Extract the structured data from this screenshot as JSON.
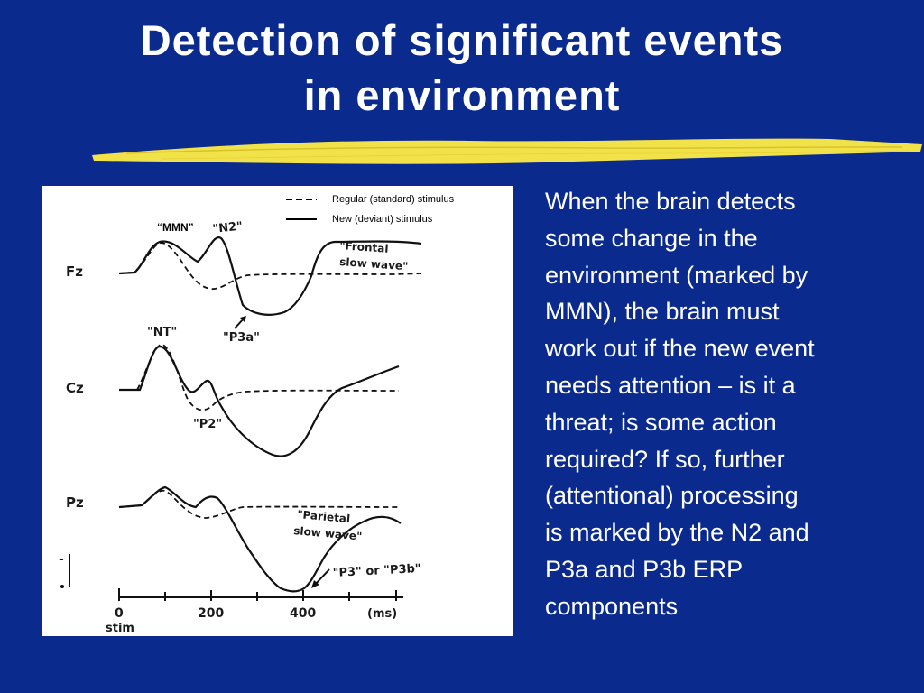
{
  "slide": {
    "title_lines": [
      "Detection of significant events",
      "in environment"
    ],
    "underline_color": "#f2e24a",
    "background_color": "#0b2a8e"
  },
  "figure": {
    "legend": {
      "standard": "Regular (standard) stimulus",
      "deviant": "New (deviant) stimulus"
    },
    "labels": {
      "mmn": "“MMN”",
      "n2": "\"N2\"",
      "frontal_1": "\"Frontal",
      "frontal_2": "slow wave\"",
      "p3a": "\"P3a\"",
      "nt": "\"NT\"",
      "p2": "\"P2\"",
      "parietal_1": "\"Parietal",
      "parietal_2": "slow wave\"",
      "p3_or_p3b": "\"P3\" or \"P3b\""
    },
    "channels": [
      "Fz",
      "Cz",
      "Pz"
    ],
    "axis": {
      "ticks": [
        "0",
        "200",
        "400"
      ],
      "unit": "(ms)",
      "stim": "stim"
    },
    "scale_marks": [
      "-",
      "+"
    ]
  },
  "body": {
    "lines": [
      "When the brain detects",
      "some change in the",
      "environment (marked by",
      "MMN), the brain must",
      "work out if the new event",
      "needs attention – is it a",
      "threat; is some action",
      "required?  If so, further",
      "(attentional) processing",
      "is marked by the N2 and",
      "P3a and P3b ERP",
      "components"
    ]
  }
}
